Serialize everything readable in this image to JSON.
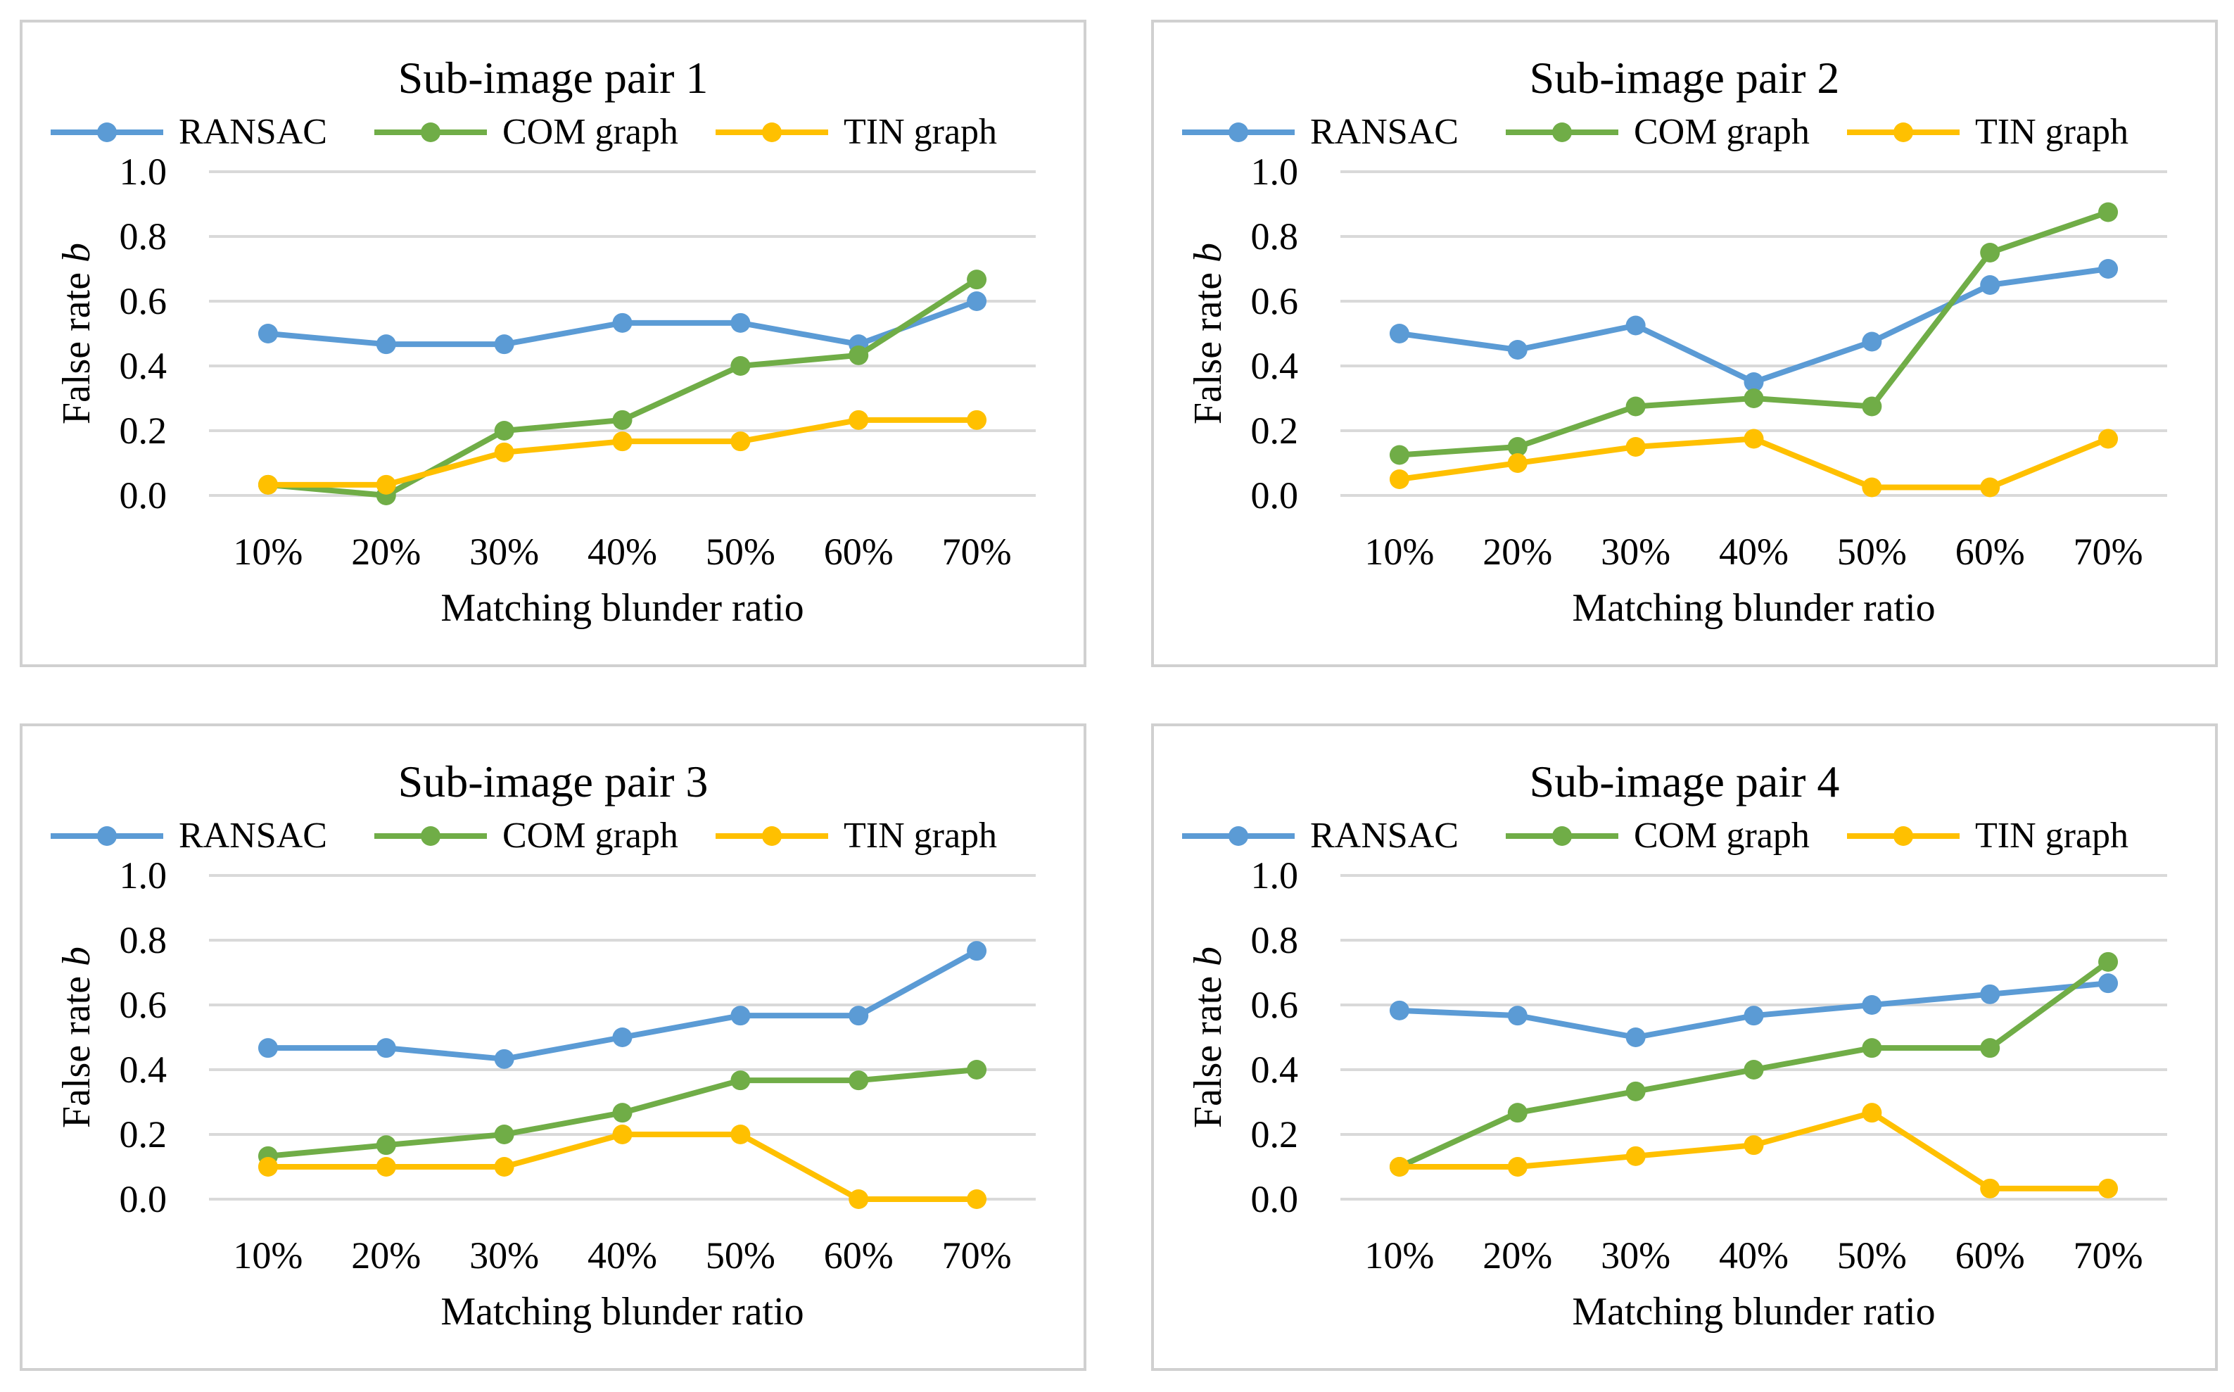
{
  "colors": {
    "RANSAC": "#5b9bd5",
    "COM graph": "#70ad47",
    "TIN graph": "#ffc000",
    "grid": "#d9d9d9",
    "border": "#d0d0d0"
  },
  "chart_data": [
    {
      "type": "line",
      "title": "Sub-image pair 1",
      "xlabel": "Matching blunder ratio",
      "ylabel_main": "False rate ",
      "ylabel_italic": "b",
      "legend_position": "top",
      "categories": [
        "10%",
        "20%",
        "30%",
        "40%",
        "50%",
        "60%",
        "70%"
      ],
      "yticks": [
        "0.0",
        "0.2",
        "0.4",
        "0.6",
        "0.8",
        "1.0"
      ],
      "ylim": [
        0,
        1.0
      ],
      "series": [
        {
          "name": "RANSAC",
          "values": [
            0.5,
            0.467,
            0.467,
            0.533,
            0.533,
            0.467,
            0.6
          ]
        },
        {
          "name": "COM graph",
          "values": [
            0.033,
            0.0,
            0.2,
            0.233,
            0.4,
            0.433,
            0.667
          ]
        },
        {
          "name": "TIN graph",
          "values": [
            0.033,
            0.033,
            0.133,
            0.167,
            0.167,
            0.233,
            0.233
          ]
        }
      ]
    },
    {
      "type": "line",
      "title": "Sub-image pair 2",
      "xlabel": "Matching blunder ratio",
      "ylabel_main": "False rate ",
      "ylabel_italic": "b",
      "legend_position": "top",
      "categories": [
        "10%",
        "20%",
        "30%",
        "40%",
        "50%",
        "60%",
        "70%"
      ],
      "yticks": [
        "0.0",
        "0.2",
        "0.4",
        "0.6",
        "0.8",
        "1.0"
      ],
      "ylim": [
        0,
        1.0
      ],
      "series": [
        {
          "name": "RANSAC",
          "values": [
            0.5,
            0.45,
            0.525,
            0.35,
            0.475,
            0.65,
            0.7
          ]
        },
        {
          "name": "COM graph",
          "values": [
            0.125,
            0.15,
            0.275,
            0.3,
            0.275,
            0.75,
            0.875
          ]
        },
        {
          "name": "TIN graph",
          "values": [
            0.05,
            0.1,
            0.15,
            0.175,
            0.025,
            0.025,
            0.175
          ]
        }
      ]
    },
    {
      "type": "line",
      "title": "Sub-image pair 3",
      "xlabel": "Matching blunder ratio",
      "ylabel_main": "False rate ",
      "ylabel_italic": "b",
      "legend_position": "top",
      "categories": [
        "10%",
        "20%",
        "30%",
        "40%",
        "50%",
        "60%",
        "70%"
      ],
      "yticks": [
        "0.0",
        "0.2",
        "0.4",
        "0.6",
        "0.8",
        "1.0"
      ],
      "ylim": [
        0,
        1.0
      ],
      "series": [
        {
          "name": "RANSAC",
          "values": [
            0.467,
            0.467,
            0.433,
            0.5,
            0.567,
            0.567,
            0.767
          ]
        },
        {
          "name": "COM graph",
          "values": [
            0.133,
            0.167,
            0.2,
            0.267,
            0.367,
            0.367,
            0.4
          ]
        },
        {
          "name": "TIN graph",
          "values": [
            0.1,
            0.1,
            0.1,
            0.2,
            0.2,
            0.0,
            0.0
          ]
        }
      ]
    },
    {
      "type": "line",
      "title": "Sub-image pair 4",
      "xlabel": "Matching blunder ratio",
      "ylabel_main": "False rate ",
      "ylabel_italic": "b",
      "legend_position": "top",
      "categories": [
        "10%",
        "20%",
        "30%",
        "40%",
        "50%",
        "60%",
        "70%"
      ],
      "yticks": [
        "0.0",
        "0.2",
        "0.4",
        "0.6",
        "0.8",
        "1.0"
      ],
      "ylim": [
        0,
        1.0
      ],
      "series": [
        {
          "name": "RANSAC",
          "values": [
            0.583,
            0.567,
            0.5,
            0.567,
            0.6,
            0.633,
            0.667
          ]
        },
        {
          "name": "COM graph",
          "values": [
            0.1,
            0.267,
            0.333,
            0.4,
            0.467,
            0.467,
            0.733
          ]
        },
        {
          "name": "TIN graph",
          "values": [
            0.1,
            0.1,
            0.133,
            0.167,
            0.267,
            0.033,
            0.033
          ]
        }
      ]
    }
  ]
}
